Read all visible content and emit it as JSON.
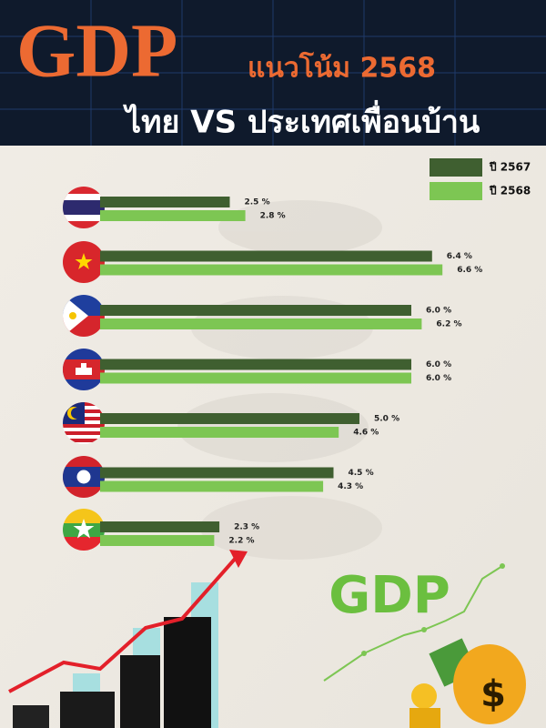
{
  "chart_data": {
    "type": "bar",
    "orientation": "horizontal",
    "title": "GDP",
    "subtitle": "แนวโน้ม 2568",
    "heading": "ไทย VS ประเทศเพื่อนบ้าน",
    "decor_text": "GDP",
    "categories": [
      null,
      null,
      null,
      null,
      null,
      null,
      null
    ],
    "series": [
      {
        "name": "ปี 2567",
        "color": "#3f5f30",
        "values": [
          2.5,
          6.4,
          6.0,
          6.0,
          5.0,
          4.5,
          2.3
        ],
        "value_labels": [
          "2.5 %",
          "6.4 %",
          "6.0 %",
          "6.0 %",
          "5.0 %",
          "4.5 %",
          "2.3 %"
        ]
      },
      {
        "name": "ปี 2568",
        "color": "#7dc653",
        "values": [
          2.8,
          6.6,
          6.2,
          6.0,
          4.6,
          4.3,
          2.2
        ],
        "value_labels": [
          "2.8 %",
          "6.6 %",
          "6.2 %",
          "6.0 %",
          "4.6 %",
          "4.3 %",
          "2.2 %"
        ]
      }
    ],
    "legend": "top-right"
  }
}
